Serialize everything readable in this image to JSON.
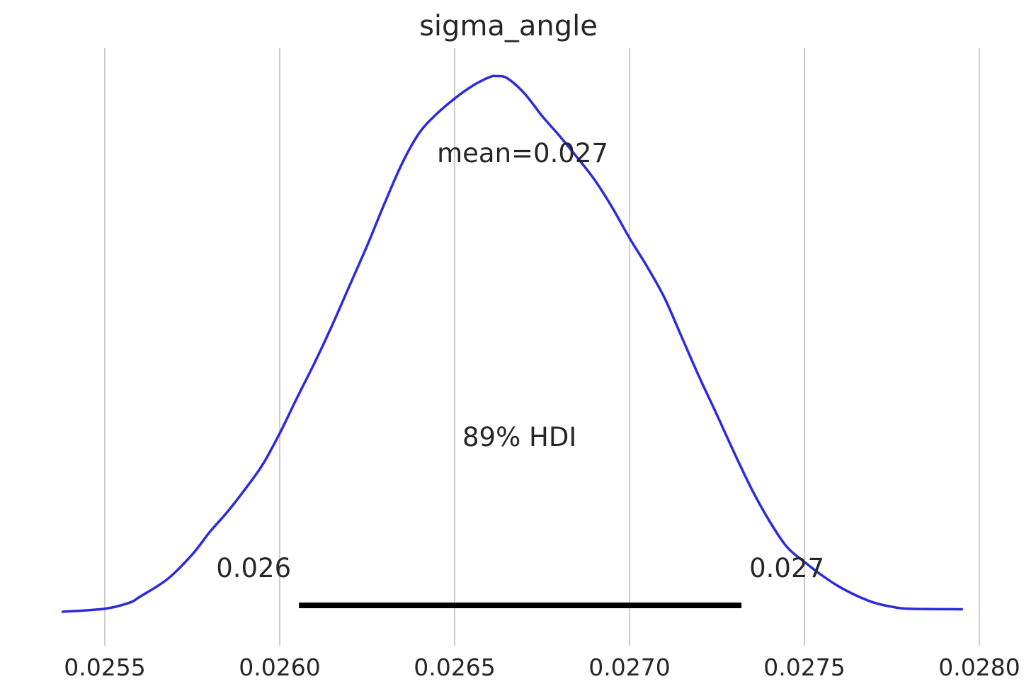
{
  "chart_data": {
    "type": "line",
    "title": "sigma_angle",
    "xlabel": "",
    "ylabel": "",
    "xlim": [
      0.02537,
      0.02799
    ],
    "ylim": [
      0,
      1.08
    ],
    "x_ticks": [
      0.0255,
      0.026,
      0.0265,
      0.027,
      0.0275,
      0.028
    ],
    "x_tick_labels": [
      "0.0255",
      "0.0260",
      "0.0265",
      "0.0270",
      "0.0275",
      "0.0280"
    ],
    "grid": "vertical",
    "line_color": "#2a2ae0",
    "hdi_color": "#000000",
    "series": [
      {
        "x": [
          0.02538,
          0.0255,
          0.02557,
          0.0256,
          0.02568,
          0.02575,
          0.0258,
          0.02585,
          0.0259,
          0.02595,
          0.026,
          0.02605,
          0.0261,
          0.02615,
          0.0262,
          0.02625,
          0.0263,
          0.02635,
          0.0264,
          0.02645,
          0.0265,
          0.02655,
          0.0266,
          0.02662,
          0.02665,
          0.0267,
          0.02675,
          0.0268,
          0.02685,
          0.0269,
          0.02695,
          0.027,
          0.02705,
          0.0271,
          0.02715,
          0.0272,
          0.02725,
          0.0273,
          0.02735,
          0.0274,
          0.02745,
          0.0275,
          0.02755,
          0.0276,
          0.02765,
          0.0277,
          0.02775,
          0.0278,
          0.02795
        ],
        "y": [
          0.0,
          0.006,
          0.018,
          0.03,
          0.066,
          0.115,
          0.16,
          0.2,
          0.245,
          0.294,
          0.358,
          0.43,
          0.5,
          0.575,
          0.655,
          0.735,
          0.82,
          0.9,
          0.962,
          1.0,
          1.03,
          1.055,
          1.073,
          1.075,
          1.071,
          1.04,
          0.995,
          0.955,
          0.912,
          0.867,
          0.812,
          0.75,
          0.693,
          0.63,
          0.55,
          0.47,
          0.395,
          0.318,
          0.245,
          0.182,
          0.13,
          0.1,
          0.073,
          0.05,
          0.032,
          0.018,
          0.01,
          0.006,
          0.005
        ]
      }
    ],
    "annotations": {
      "mean_label": "mean=0.027",
      "hdi_label": "89% HDI",
      "hdi_low_label": "0.026",
      "hdi_high_label": "0.027"
    },
    "mean": 0.02666,
    "hdi": [
      0.026055,
      0.02732
    ]
  }
}
